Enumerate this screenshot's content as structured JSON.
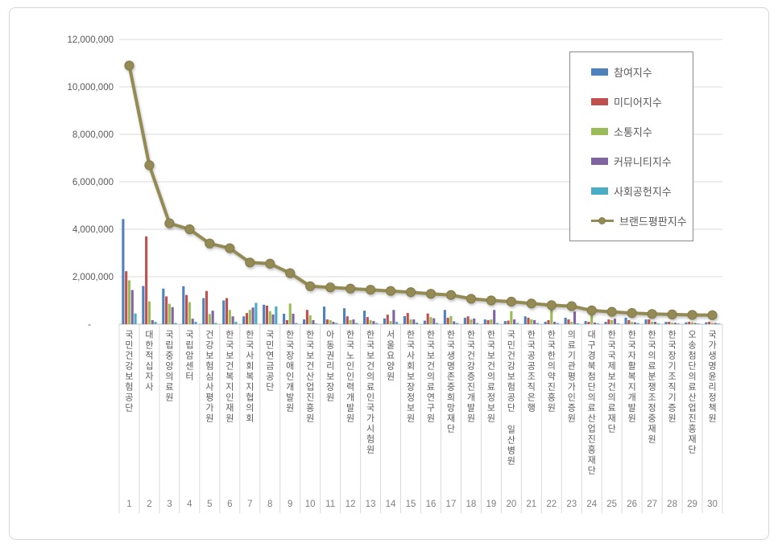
{
  "chart_data": {
    "type": "bar",
    "combo": "clustered-bar-with-line",
    "title": "",
    "categories": [
      "국민건강보험공단",
      "대한적십자사",
      "국립중앙의료원",
      "국립암센터",
      "건강보험심사평가원",
      "한국보건복지인재원",
      "한국사회복지협의회",
      "국민연금공단",
      "한국장애인개발원",
      "한국보건산업진흥원",
      "아동권리보장원",
      "한국노인인력개발원",
      "한국보건의료인국가시험원",
      "서울요양원",
      "한국사회보장정보원",
      "한국보건의료연구원",
      "한국생명존중희망재단",
      "한국건강증진개발원",
      "한국보건의료정보원",
      "국민건강보험공단 일산병원",
      "한국공공조직은행",
      "한국한의약진흥원",
      "의료기관평가인증원",
      "대구경북첨단의료산업진흥재단",
      "한국국제보건의료재단",
      "한국자활복지개발원",
      "한국의료분쟁조정중재원",
      "한국장기조직기증원",
      "오송첨단의료산업진흥재단",
      "국가생명윤리정책원"
    ],
    "rank_labels": [
      "1",
      "2",
      "3",
      "4",
      "5",
      "6",
      "7",
      "8",
      "9",
      "10",
      "11",
      "12",
      "13",
      "14",
      "15",
      "16",
      "17",
      "18",
      "19",
      "20",
      "21",
      "22",
      "23",
      "24",
      "25",
      "26",
      "27",
      "28",
      "29",
      "30"
    ],
    "series": [
      {
        "name": "참여지수",
        "type": "bar",
        "color": "#4F81BD",
        "values": [
          4430000,
          1610000,
          1500000,
          1600000,
          1100000,
          1000000,
          330000,
          820000,
          440000,
          200000,
          740000,
          670000,
          570000,
          240000,
          340000,
          150000,
          600000,
          270000,
          200000,
          130000,
          330000,
          100000,
          270000,
          130000,
          100000,
          270000,
          200000,
          100000,
          80000,
          80000
        ]
      },
      {
        "name": "미디어지수",
        "type": "bar",
        "color": "#C0504D",
        "values": [
          2230000,
          3700000,
          1170000,
          1230000,
          1400000,
          1100000,
          470000,
          780000,
          170000,
          600000,
          200000,
          330000,
          300000,
          400000,
          470000,
          450000,
          270000,
          330000,
          170000,
          150000,
          270000,
          170000,
          200000,
          100000,
          200000,
          170000,
          200000,
          100000,
          100000,
          100000
        ]
      },
      {
        "name": "소통지수",
        "type": "bar",
        "color": "#9BBB59",
        "values": [
          1850000,
          960000,
          860000,
          930000,
          430000,
          600000,
          600000,
          550000,
          870000,
          370000,
          170000,
          170000,
          170000,
          130000,
          200000,
          300000,
          340000,
          200000,
          200000,
          550000,
          200000,
          650000,
          100000,
          470000,
          170000,
          100000,
          100000,
          60000,
          80000,
          50000
        ]
      },
      {
        "name": "커뮤니티지수",
        "type": "bar",
        "color": "#8064A2",
        "values": [
          1440000,
          170000,
          720000,
          230000,
          570000,
          330000,
          700000,
          410000,
          440000,
          170000,
          100000,
          200000,
          130000,
          600000,
          200000,
          250000,
          120000,
          240000,
          600000,
          200000,
          170000,
          100000,
          530000,
          70000,
          230000,
          80000,
          100000,
          60000,
          50000,
          50000
        ]
      },
      {
        "name": "사회공헌지수",
        "type": "bar",
        "color": "#4BACC6",
        "values": [
          450000,
          100000,
          50000,
          100000,
          50000,
          100000,
          900000,
          750000,
          50000,
          30000,
          50000,
          50000,
          50000,
          100000,
          70000,
          50000,
          50000,
          50000,
          50000,
          50000,
          50000,
          50000,
          40000,
          40000,
          40000,
          50000,
          40000,
          30000,
          30000,
          30000
        ]
      },
      {
        "name": "브랜드평판지수",
        "type": "line",
        "color": "#948A54",
        "values": [
          10900000,
          6700000,
          4250000,
          4000000,
          3400000,
          3200000,
          2600000,
          2550000,
          2150000,
          1600000,
          1550000,
          1500000,
          1450000,
          1400000,
          1350000,
          1280000,
          1230000,
          1070000,
          1000000,
          950000,
          870000,
          800000,
          760000,
          580000,
          520000,
          470000,
          430000,
          410000,
          390000,
          380000
        ]
      }
    ],
    "y_axis": {
      "min": 0,
      "max": 12000000,
      "step": 2000000,
      "tick_labels_top_to_bottom": [
        "12,000,000",
        "10,000,000",
        "8,000,000",
        "6,000,000",
        "4,000,000",
        "2,000,000",
        "-"
      ]
    },
    "grid": true,
    "legend_position": "top-right"
  },
  "colors": {
    "grid_line": "#d9d9d9",
    "axis_line": "#bfbfbf",
    "tick_text": "#595959",
    "rank_text": "#7f7f7f",
    "line_marker_edge": "#827a4b",
    "card_border": "#d6d6d6",
    "legend_border": "#898989"
  }
}
